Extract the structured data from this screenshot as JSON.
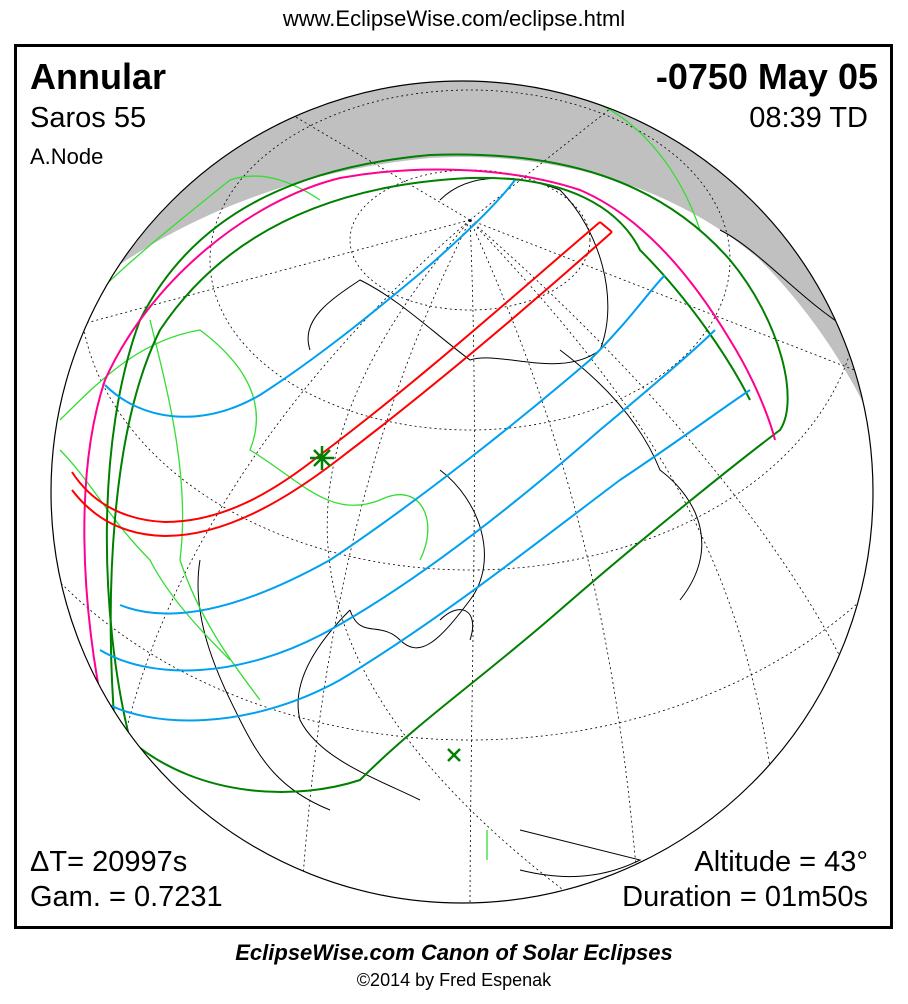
{
  "header": {
    "url": "www.EclipseWise.com/eclipse.html"
  },
  "eclipse": {
    "type": "Annular",
    "date": "-0750 May 05",
    "saros": "Saros  55",
    "time": "08:39 TD",
    "node": "A.Node",
    "delta_t": "ΔT=  20997s",
    "gamma": "Gam. = 0.7231",
    "altitude": "Altitude = 43°",
    "duration": "Duration = 01m50s"
  },
  "map": {
    "colors": {
      "central_path": "#ff0000",
      "penumbral_limits": "#008000",
      "eclipse_at_sunrise_sunset": "#ff0090",
      "magnitude_lines": "#00a0f0",
      "borders": "#33dd33",
      "night": "#c0c0c0"
    },
    "markers": [
      "greatest-eclipse-star",
      "subsolar-point-cross"
    ]
  },
  "footer": {
    "canon": "EclipseWise.com Canon of Solar Eclipses",
    "copyright": "©2014 by Fred Espenak"
  }
}
